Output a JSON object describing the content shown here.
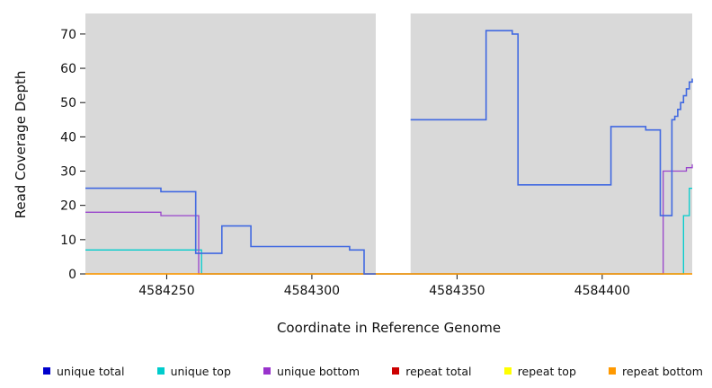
{
  "chart_data": {
    "type": "line",
    "title": "",
    "xlabel": "Coordinate in Reference Genome",
    "ylabel": "Read Coverage Depth",
    "xlim": [
      4584222,
      4584431
    ],
    "ylim": [
      0,
      76
    ],
    "x_ticks": [
      4584250,
      4584300,
      4584350,
      4584400
    ],
    "y_ticks": [
      0,
      10,
      20,
      30,
      40,
      50,
      60,
      70
    ],
    "panel_background": "#d9d9d9",
    "masked_region": {
      "x_start": 4584322,
      "x_end": 4584334,
      "color": "#ffffff"
    },
    "series": [
      {
        "name": "unique top",
        "color": "#00cccc",
        "width": 1.3,
        "segments": [
          [
            [
              4584222,
              7
            ],
            [
              4584262,
              0
            ],
            [
              4584428,
              17
            ],
            [
              4584430,
              25
            ],
            [
              4584431,
              25
            ]
          ]
        ]
      },
      {
        "name": "unique bottom",
        "color": "#9944cc",
        "width": 1.3,
        "segments": [
          [
            [
              4584222,
              18
            ],
            [
              4584248,
              17
            ],
            [
              4584261,
              0
            ],
            [
              4584421,
              30
            ],
            [
              4584429,
              31
            ],
            [
              4584431,
              32
            ]
          ]
        ]
      },
      {
        "name": "repeat total",
        "color": "#cc0000",
        "width": 1.2,
        "segments": [
          [
            [
              4584222,
              0
            ],
            [
              4584431,
              0
            ]
          ]
        ]
      },
      {
        "name": "repeat top",
        "color": "#ffff00",
        "width": 1.2,
        "segments": [
          [
            [
              4584222,
              0
            ],
            [
              4584431,
              0
            ]
          ]
        ]
      },
      {
        "name": "repeat bottom",
        "color": "#ff9900",
        "width": 1.2,
        "segments": [
          [
            [
              4584222,
              0
            ],
            [
              4584431,
              0
            ]
          ]
        ]
      },
      {
        "name": "unique total",
        "color": "#4169e1",
        "width": 1.6,
        "segments": [
          [
            [
              4584222,
              25
            ],
            [
              4584248,
              24
            ],
            [
              4584260,
              6
            ],
            [
              4584269,
              14
            ],
            [
              4584279,
              8
            ],
            [
              4584313,
              7
            ],
            [
              4584318,
              0
            ],
            [
              4584322,
              0
            ]
          ],
          [
            [
              4584334,
              45
            ],
            [
              4584360,
              71
            ],
            [
              4584369,
              70
            ],
            [
              4584371,
              26
            ],
            [
              4584403,
              43
            ],
            [
              4584415,
              42
            ],
            [
              4584420,
              17
            ],
            [
              4584424,
              45
            ],
            [
              4584425,
              46
            ],
            [
              4584426,
              48
            ],
            [
              4584427,
              50
            ],
            [
              4584428,
              52
            ],
            [
              4584429,
              54
            ],
            [
              4584430,
              56
            ],
            [
              4584431,
              57
            ]
          ]
        ]
      }
    ],
    "legend": [
      {
        "label": "unique total",
        "color": "#0000cc"
      },
      {
        "label": "unique top",
        "color": "#00cccc"
      },
      {
        "label": "unique bottom",
        "color": "#9933cc"
      },
      {
        "label": "repeat total",
        "color": "#cc0000"
      },
      {
        "label": "repeat top",
        "color": "#ffff00"
      },
      {
        "label": "repeat bottom",
        "color": "#ff9900"
      }
    ]
  }
}
